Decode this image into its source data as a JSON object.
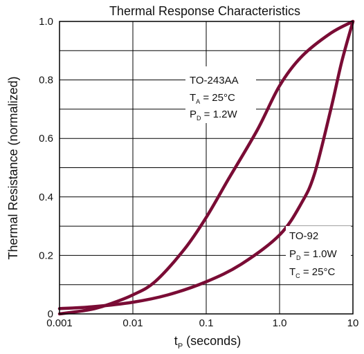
{
  "chart_data": {
    "type": "line",
    "title": "Thermal Response Characteristics",
    "ylabel": "Thermal Resistance (normalized)",
    "xlabel": {
      "main": "t",
      "sub": "P",
      "rest": " (seconds)"
    },
    "x_scale": "log",
    "xlim": [
      0.001,
      10
    ],
    "ylim": [
      0,
      1.0
    ],
    "x_ticks": [
      {
        "value": 0.001,
        "label": "0.001"
      },
      {
        "value": 0.01,
        "label": "0.01"
      },
      {
        "value": 0.1,
        "label": "0.1"
      },
      {
        "value": 1,
        "label": "1.0"
      },
      {
        "value": 10,
        "label": "10"
      }
    ],
    "y_ticks": [
      {
        "value": 0,
        "label": "0"
      },
      {
        "value": 0.2,
        "label": "0.2"
      },
      {
        "value": 0.4,
        "label": "0.4"
      },
      {
        "value": 0.6,
        "label": "0.6"
      },
      {
        "value": 0.8,
        "label": "0.8"
      },
      {
        "value": 1.0,
        "label": "1.0"
      }
    ],
    "y_minor_grid": [
      0.1,
      0.3,
      0.5,
      0.7,
      0.9
    ],
    "grid": true,
    "line_color": "#7a0c35",
    "series": [
      {
        "name": "TO-243AA",
        "x": [
          0.001,
          0.002,
          0.003,
          0.005,
          0.01,
          0.02,
          0.05,
          0.1,
          0.2,
          0.5,
          1,
          2,
          5,
          10
        ],
        "y": [
          0.0,
          0.01,
          0.018,
          0.035,
          0.065,
          0.11,
          0.22,
          0.33,
          0.46,
          0.63,
          0.78,
          0.88,
          0.96,
          1.0
        ]
      },
      {
        "name": "TO-92",
        "x": [
          0.001,
          0.003,
          0.01,
          0.03,
          0.1,
          0.3,
          1,
          2,
          3,
          5,
          7,
          10
        ],
        "y": [
          0.018,
          0.025,
          0.04,
          0.065,
          0.11,
          0.17,
          0.27,
          0.38,
          0.48,
          0.7,
          0.86,
          1.0
        ]
      }
    ],
    "annotations": [
      {
        "series": "TO-243AA",
        "lines": [
          {
            "main": "TO-243AA",
            "sub": "",
            "rest": ""
          },
          {
            "main": "T",
            "sub": "A",
            "rest": " = 25°C"
          },
          {
            "main": "P",
            "sub": "D",
            "rest": " = 1.2W"
          }
        ]
      },
      {
        "series": "TO-92",
        "lines": [
          {
            "main": "TO-92",
            "sub": "",
            "rest": ""
          },
          {
            "main": "P",
            "sub": "D",
            "rest": " = 1.0W"
          },
          {
            "main": "T",
            "sub": "C",
            "rest": " = 25°C"
          }
        ]
      }
    ]
  }
}
